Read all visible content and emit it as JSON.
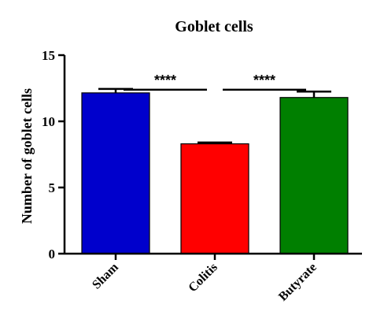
{
  "chart_data": {
    "type": "bar",
    "title": "Goblet cells",
    "xlabel": "",
    "ylabel": "Number of goblet cells",
    "categories": [
      "Sham",
      "Colitis",
      "Butyrate"
    ],
    "values": [
      12.15,
      8.3,
      11.8
    ],
    "errors": [
      0.3,
      0.1,
      0.45
    ],
    "colors": [
      "#0000cc",
      "#ff0000",
      "#007f00"
    ],
    "ylim": [
      0,
      15
    ],
    "yticks": [
      "0",
      "5",
      "10",
      "15"
    ],
    "significance": [
      {
        "from": 0,
        "to": 1,
        "label": "****",
        "y": 13.7
      },
      {
        "from": 1,
        "to": 2,
        "label": "****",
        "y": 13.7
      }
    ],
    "grid": false
  }
}
